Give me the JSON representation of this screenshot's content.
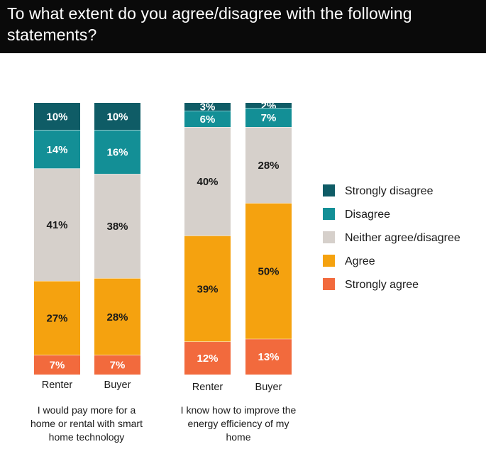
{
  "header": {
    "title": "To what extent do you agree/disagree with the following statements?"
  },
  "colors": {
    "header_bg": "#0a0a0a",
    "strongly_disagree": "#0f5c66",
    "disagree": "#138f96",
    "neither": "#d6d0cb",
    "agree": "#f5a20f",
    "strongly_agree": "#f26a3d"
  },
  "chart_data": {
    "type": "bar",
    "stacked": true,
    "title": "To what extent do you agree/disagree with the following statements?",
    "series": [
      {
        "name": "Strongly disagree",
        "color": "#0f5c66",
        "label_color": "#ffffff"
      },
      {
        "name": "Disagree",
        "color": "#138f96",
        "label_color": "#ffffff"
      },
      {
        "name": "Neither agree/disagree",
        "color": "#d6d0cb",
        "label_color": "#1a1a1a"
      },
      {
        "name": "Agree",
        "color": "#f5a20f",
        "label_color": "#1a1a1a"
      },
      {
        "name": "Strongly agree",
        "color": "#f26a3d",
        "label_color": "#ffffff"
      }
    ],
    "groups": [
      {
        "label": "I would pay more for a home or rental with smart home technology",
        "label_lines": [
          "I would pay more for a",
          "home or rental with smart",
          "home technology"
        ],
        "bars": [
          {
            "category": "Renter",
            "values": [
              10,
              14,
              41,
              27,
              7
            ],
            "labels": [
              "10%",
              "14%",
              "41%",
              "27%",
              "7%"
            ]
          },
          {
            "category": "Buyer",
            "values": [
              10,
              16,
              38,
              28,
              7
            ],
            "labels": [
              "10%",
              "16%",
              "38%",
              "28%",
              "7%"
            ]
          }
        ]
      },
      {
        "label": "I know how to improve the energy efficiency of my home",
        "label_lines": [
          "I know how to improve the",
          "energy efficiency of my",
          "home"
        ],
        "bars": [
          {
            "category": "Renter",
            "values": [
              3,
              6,
              40,
              39,
              12
            ],
            "labels": [
              "3%",
              "6%",
              "40%",
              "39%",
              "12%"
            ]
          },
          {
            "category": "Buyer",
            "values": [
              2,
              7,
              28,
              50,
              13
            ],
            "labels": [
              "2%",
              "7%",
              "28%",
              "50%",
              "13%"
            ]
          }
        ]
      }
    ],
    "legend": {
      "position": "right",
      "items": [
        "Strongly disagree",
        "Disagree",
        "Neither agree/disagree",
        "Agree",
        "Strongly agree"
      ]
    },
    "ylim": [
      0,
      100
    ]
  }
}
